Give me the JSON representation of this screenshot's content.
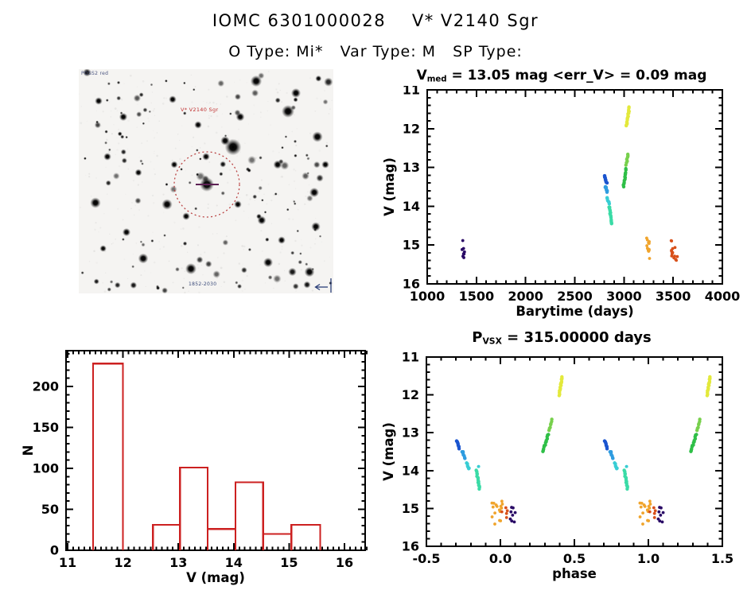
{
  "header": {
    "title": "IOMC 6301000028    V* V2140 Sgr",
    "subtitle": "O Type: Mi*   Var Type: M   SP Type:"
  },
  "finder": {
    "survey_label": "POSS2 red",
    "target_label": "V* V2140 Sgr",
    "coords_label": "1852-2030",
    "target_label_color": "#c03030",
    "circle_color": "#b53333",
    "crosshair_color": "#5e2255",
    "compass_color": "#2a3e78"
  },
  "chart_data": {
    "lightcurve": {
      "type": "scatter",
      "title": {
        "base": "V",
        "sub": "med",
        "rest": " = 13.05 mag <err_V> = 0.09 mag"
      },
      "xlabel": "Barytime (days)",
      "ylabel": "V (mag)",
      "xlim": [
        1000,
        4000
      ],
      "ylim": [
        11,
        16
      ],
      "y_inverted": true,
      "grid": false,
      "x_tick_values": [
        1000,
        1500,
        2000,
        2500,
        3000,
        3500,
        4000
      ],
      "x_tick_labels": [
        "1000",
        "1500",
        "2000",
        "2500",
        "3000",
        "3500",
        "4000"
      ],
      "x_minor_step": 100,
      "y_tick_values": [
        11,
        12,
        13,
        14,
        15,
        16
      ],
      "y_tick_labels": [
        "11",
        "12",
        "13",
        "14",
        "15",
        "16"
      ],
      "y_minor_step": 0.2,
      "clusters": [
        {
          "id": "epoch1-purple",
          "color": "#2a0a66",
          "kind": "scatter",
          "x": [
            1342,
            1382
          ],
          "v": [
            14.8,
            15.33
          ],
          "n": 9
        },
        {
          "id": "epoch2-darkblue",
          "color": "#1b55cf",
          "kind": "streak",
          "x1": 2798,
          "v1": 13.19,
          "x2": 2826,
          "v2": 13.42,
          "n": 9
        },
        {
          "id": "epoch3-blue",
          "color": "#2f9ce0",
          "kind": "streak",
          "x1": 2806,
          "v1": 13.47,
          "x2": 2832,
          "v2": 13.64,
          "n": 7
        },
        {
          "id": "epoch4-cyan",
          "color": "#38cdd4",
          "kind": "streak",
          "x1": 2824,
          "v1": 13.78,
          "x2": 2852,
          "v2": 13.93,
          "n": 6
        },
        {
          "id": "epoch5-turquoise",
          "color": "#3adba6",
          "kind": "streak",
          "x1": 2850,
          "v1": 13.99,
          "x2": 2876,
          "v2": 14.48,
          "n": 15
        },
        {
          "id": "epoch6-green",
          "color": "#2fbf47",
          "kind": "streak",
          "x1": 2994,
          "v1": 13.52,
          "x2": 3024,
          "v2": 13.02,
          "n": 13
        },
        {
          "id": "epoch6-lightgreen",
          "color": "#77d04c",
          "kind": "streak",
          "x1": 3022,
          "v1": 12.96,
          "x2": 3042,
          "v2": 12.63,
          "n": 7
        },
        {
          "id": "epoch7-yellow",
          "color": "#e3e93c",
          "kind": "streak",
          "x1": 3024,
          "v1": 11.95,
          "x2": 3056,
          "v2": 11.44,
          "n": 17
        },
        {
          "id": "epoch8-orange",
          "color": "#f0a42c",
          "kind": "scatter",
          "x": [
            3228,
            3260
          ],
          "v": [
            14.8,
            15.37
          ],
          "n": 13
        },
        {
          "id": "epoch9-red",
          "color": "#d8501a",
          "kind": "scatter",
          "x": [
            3480,
            3548
          ],
          "v": [
            14.82,
            15.43
          ],
          "n": 14
        }
      ]
    },
    "histogram": {
      "type": "bar",
      "xlabel": "V (mag)",
      "ylabel": "N",
      "xlim": [
        11,
        16.4
      ],
      "ylim": [
        0,
        243
      ],
      "bar_color": "#cc2020",
      "x_tick_values": [
        11,
        12,
        13,
        14,
        15,
        16
      ],
      "x_tick_labels": [
        "11",
        "12",
        "13",
        "14",
        "15",
        "16"
      ],
      "x_minor_step": 0.1,
      "y_tick_values": [
        0,
        50,
        100,
        150,
        200
      ],
      "y_tick_labels": [
        "0",
        "50",
        "100",
        "150",
        "200"
      ],
      "y_minor_step": 10,
      "bins": [
        {
          "v0": 11.46,
          "v1": 12.0,
          "count": 228
        },
        {
          "v0": 12.54,
          "v1": 13.03,
          "count": 31
        },
        {
          "v0": 13.03,
          "v1": 13.53,
          "count": 101
        },
        {
          "v0": 13.53,
          "v1": 14.03,
          "count": 26
        },
        {
          "v0": 14.03,
          "v1": 14.53,
          "count": 83
        },
        {
          "v0": 14.53,
          "v1": 15.04,
          "count": 20
        },
        {
          "v0": 15.04,
          "v1": 15.56,
          "count": 31
        }
      ]
    },
    "phase": {
      "type": "scatter",
      "title": {
        "base": "P",
        "sub": "VSX",
        "rest": " = 315.00000 days"
      },
      "xlabel": "phase",
      "ylabel": "V (mag)",
      "xlim": [
        -0.5,
        1.5
      ],
      "ylim": [
        11,
        16
      ],
      "y_inverted": true,
      "grid": false,
      "duplicate_offset": 1,
      "x_tick_values": [
        -0.5,
        0,
        0.5,
        1,
        1.5
      ],
      "x_tick_labels": [
        "-0.5",
        "0.0",
        "0.5",
        "1.0",
        "1.5"
      ],
      "x_minor_step": 0.1,
      "y_tick_values": [
        11,
        12,
        13,
        14,
        15,
        16
      ],
      "y_tick_labels": [
        "11",
        "12",
        "13",
        "14",
        "15",
        "16"
      ],
      "y_minor_step": 0.2,
      "clusters": [
        {
          "id": "darkblue",
          "color": "#1b55cf",
          "kind": "streak",
          "x1": -0.295,
          "v1": 13.19,
          "x2": -0.276,
          "v2": 13.42,
          "n": 9
        },
        {
          "id": "blue",
          "color": "#2f9ce0",
          "kind": "streak",
          "x1": -0.258,
          "v1": 13.47,
          "x2": -0.24,
          "v2": 13.7,
          "n": 7
        },
        {
          "id": "cyan",
          "color": "#38cdd4",
          "kind": "streak",
          "x1": -0.228,
          "v1": 13.79,
          "x2": -0.21,
          "v2": 13.97,
          "n": 6
        },
        {
          "id": "cyan-dot",
          "color": "#38cdd4",
          "kind": "scatter",
          "x": [
            -0.152,
            -0.144
          ],
          "v": [
            13.84,
            13.9
          ],
          "n": 2
        },
        {
          "id": "turquoise",
          "color": "#3adba6",
          "kind": "streak",
          "x1": -0.163,
          "v1": 13.99,
          "x2": -0.14,
          "v2": 14.5,
          "n": 15
        },
        {
          "id": "green",
          "color": "#2fbf47",
          "kind": "streak",
          "x1": 0.285,
          "v1": 13.52,
          "x2": 0.325,
          "v2": 13.02,
          "n": 13
        },
        {
          "id": "lightgreen",
          "color": "#77d04c",
          "kind": "streak",
          "x1": 0.325,
          "v1": 12.96,
          "x2": 0.35,
          "v2": 12.63,
          "n": 7
        },
        {
          "id": "yellow",
          "color": "#e3e93c",
          "kind": "streak",
          "x1": 0.398,
          "v1": 12.02,
          "x2": 0.418,
          "v2": 11.5,
          "n": 17
        },
        {
          "id": "orange",
          "color": "#f0a42c",
          "kind": "scatter",
          "x": [
            -0.06,
            0.015
          ],
          "v": [
            14.8,
            15.42
          ],
          "n": 17
        },
        {
          "id": "red",
          "color": "#d8501a",
          "kind": "scatter",
          "x": [
            0.005,
            0.05
          ],
          "v": [
            14.95,
            15.3
          ],
          "n": 5
        },
        {
          "id": "purple",
          "color": "#2a0a66",
          "kind": "scatter",
          "x": [
            0.065,
            0.115
          ],
          "v": [
            14.9,
            15.36
          ],
          "n": 8
        }
      ]
    }
  }
}
